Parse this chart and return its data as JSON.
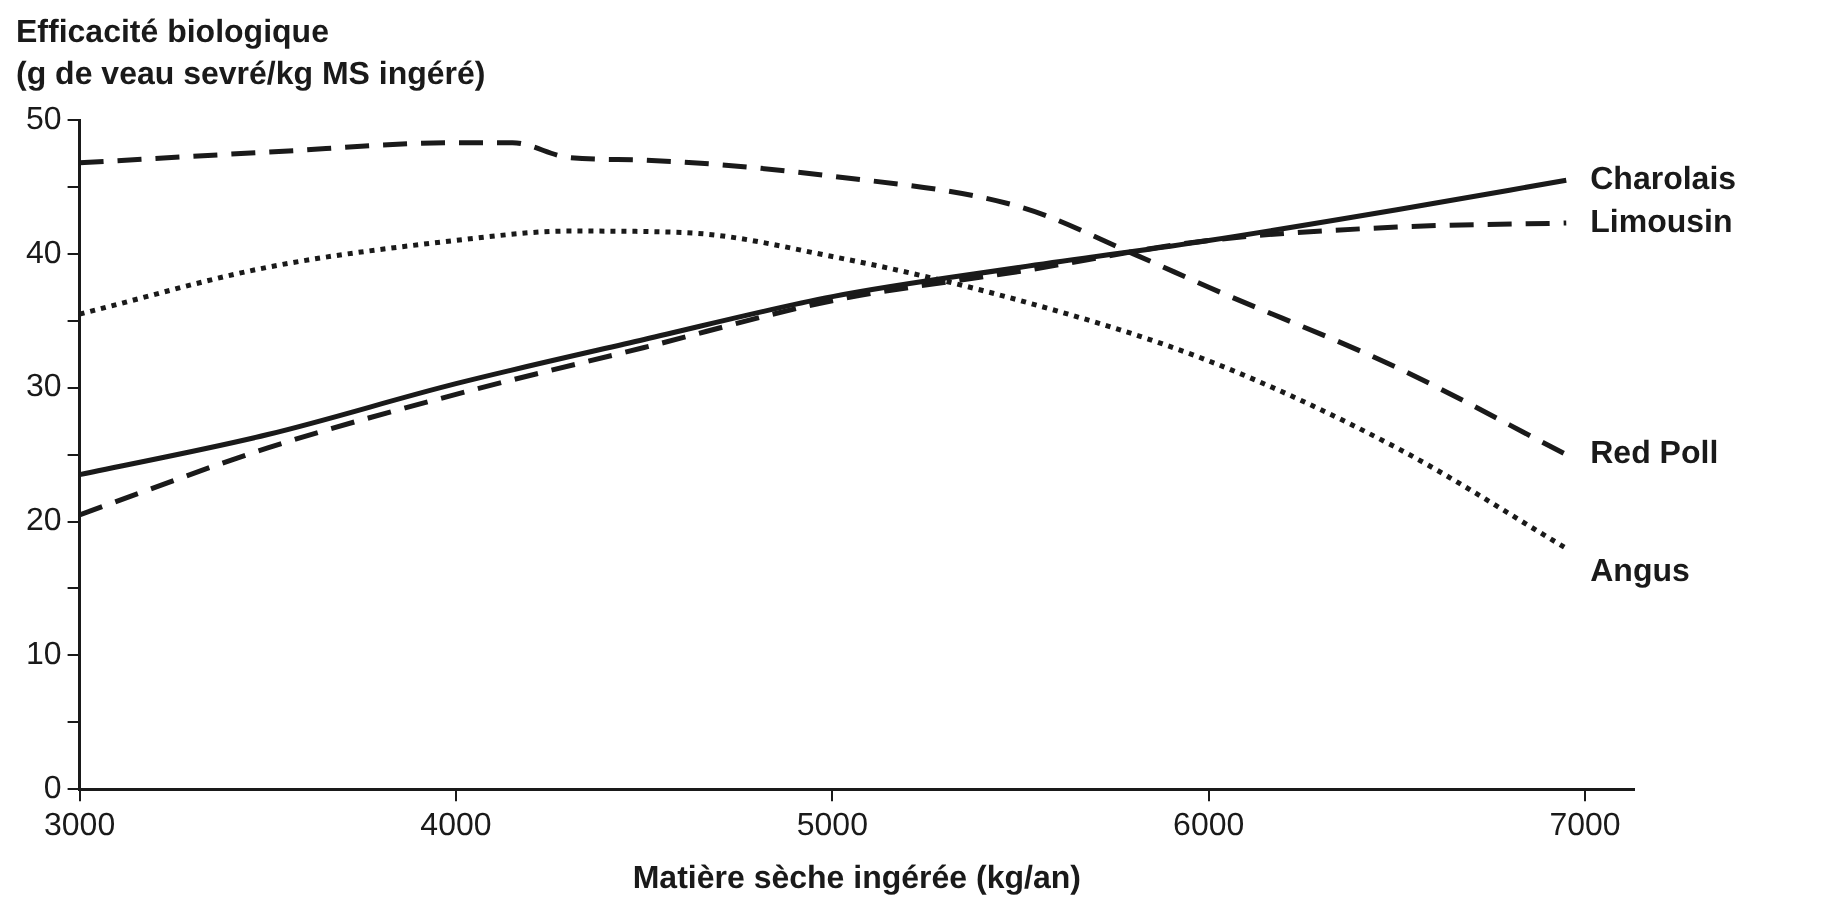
{
  "chart_data": {
    "type": "line",
    "xlabel": "Matière sèche ingérée (kg/an)",
    "ylabel": "Efficacité biologique\n(g de veau sevré/kg MS ingéré)",
    "xlim": [
      3000,
      7130
    ],
    "xticks": [
      3000,
      4000,
      5000,
      6000,
      7000
    ],
    "ylim": [
      0,
      50
    ],
    "yticks": [
      0,
      {
        "value": 5,
        "label": null
      },
      10,
      {
        "value": 15,
        "label": null
      },
      20,
      {
        "value": 25,
        "label": null
      },
      30,
      {
        "value": 35,
        "label": null
      },
      40,
      {
        "value": 45,
        "label": null
      },
      50
    ],
    "grid": false,
    "legend": false,
    "marker": "none",
    "series": [
      {
        "name": "Charolais",
        "color": "#1a1a1a",
        "line_style": "solid",
        "x": [
          3000,
          3500,
          4000,
          4500,
          5000,
          5500,
          6000,
          6500,
          6950
        ],
        "values": [
          23.5,
          26.5,
          30.3,
          33.6,
          36.8,
          39,
          41,
          43.3,
          45.5
        ]
      },
      {
        "name": "Limousin",
        "color": "#1a1a1a",
        "line_style": "dashed",
        "x": [
          3000,
          3500,
          4000,
          4500,
          5000,
          5500,
          6000,
          6500,
          6950
        ],
        "values": [
          20.5,
          25.5,
          29.5,
          33,
          36.5,
          38.7,
          41,
          42,
          42.3
        ]
      },
      {
        "name": "Red Poll",
        "color": "#1a1a1a",
        "line_style": "dashed",
        "x": [
          3000,
          3500,
          4000,
          4150,
          4300,
          4500,
          5000,
          5500,
          5800,
          6000,
          6500,
          6950
        ],
        "values": [
          46.8,
          47.6,
          48.3,
          48.3,
          47.2,
          47,
          45.8,
          43.5,
          40,
          37.5,
          31.5,
          25
        ]
      },
      {
        "name": "Angus",
        "color": "#1a1a1a",
        "line_style": "dotted",
        "x": [
          3000,
          3500,
          4000,
          4300,
          4600,
          5000,
          5500,
          6000,
          6500,
          6950
        ],
        "values": [
          35.5,
          39,
          41,
          41.7,
          41.6,
          39.8,
          36.5,
          32,
          25.5,
          18
        ]
      }
    ]
  }
}
